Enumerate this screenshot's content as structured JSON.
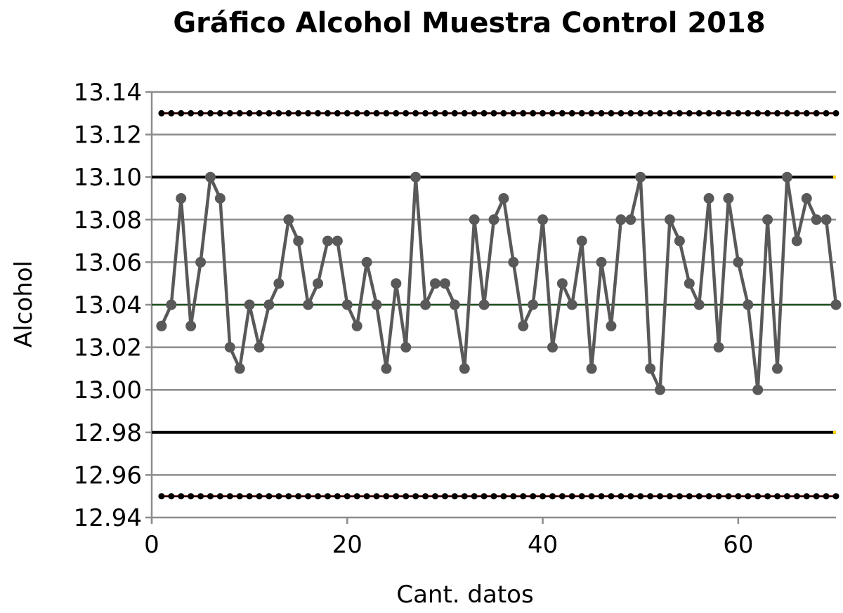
{
  "chart_data": {
    "type": "line",
    "title": "Gráfico Alcohol Muestra Control 2018",
    "xlabel": "Cant. datos",
    "ylabel": "Alcohol",
    "xlim": [
      0,
      70
    ],
    "ylim": [
      12.94,
      13.14
    ],
    "x_ticks": [
      0,
      20,
      40,
      60
    ],
    "x_tick_labels": [
      "0",
      "20",
      "40",
      "60"
    ],
    "y_ticks": [
      12.94,
      12.96,
      12.98,
      13.0,
      13.02,
      13.04,
      13.06,
      13.08,
      13.1,
      13.12,
      13.14
    ],
    "y_tick_labels": [
      "12.94",
      "12.96",
      "12.98",
      "13.00",
      "13.02",
      "13.04",
      "13.06",
      "13.08",
      "13.10",
      "13.12",
      "13.14"
    ],
    "grid": "horizontal",
    "series": [
      {
        "role": "data",
        "color": "#595959",
        "x": [
          1,
          2,
          3,
          4,
          5,
          6,
          7,
          8,
          9,
          10,
          11,
          12,
          13,
          14,
          15,
          16,
          17,
          18,
          19,
          20,
          21,
          22,
          23,
          24,
          25,
          26,
          27,
          28,
          29,
          30,
          31,
          32,
          33,
          34,
          35,
          36,
          37,
          38,
          39,
          40,
          41,
          42,
          43,
          44,
          45,
          46,
          47,
          48,
          49,
          50,
          51,
          52,
          53,
          54,
          55,
          56,
          57,
          58,
          59,
          60,
          61,
          62,
          63,
          64,
          65,
          66,
          67,
          68,
          69,
          70
        ],
        "values": [
          13.03,
          13.04,
          13.09,
          13.03,
          13.06,
          13.1,
          13.09,
          13.02,
          13.01,
          13.04,
          13.02,
          13.04,
          13.05,
          13.08,
          13.07,
          13.04,
          13.05,
          13.07,
          13.07,
          13.04,
          13.03,
          13.06,
          13.04,
          13.01,
          13.05,
          13.02,
          13.1,
          13.04,
          13.05,
          13.05,
          13.04,
          13.01,
          13.08,
          13.04,
          13.08,
          13.09,
          13.06,
          13.03,
          13.04,
          13.08,
          13.02,
          13.05,
          13.04,
          13.07,
          13.01,
          13.06,
          13.03,
          13.08,
          13.08,
          13.1,
          13.01,
          13.0,
          13.08,
          13.07,
          13.05,
          13.04,
          13.09,
          13.02,
          13.09,
          13.06,
          13.04,
          13.0,
          13.08,
          13.01,
          13.1,
          13.07,
          13.09,
          13.08,
          13.08,
          13.04
        ]
      },
      {
        "role": "upper-limit-dotted",
        "color": "#000000",
        "accent": "#c00000",
        "value": 13.13,
        "x_start": 1,
        "x_end": 70
      },
      {
        "role": "lower-limit-dotted",
        "color": "#000000",
        "accent": "#c00000",
        "value": 12.95,
        "x_start": 1,
        "x_end": 70
      },
      {
        "role": "upper-limit",
        "color": "#000000",
        "accent": "#ffd700",
        "value": 13.1,
        "x_start": 0,
        "x_end": 70
      },
      {
        "role": "lower-limit",
        "color": "#000000",
        "accent": "#ffd700",
        "value": 12.98,
        "x_start": 0,
        "x_end": 70
      },
      {
        "role": "center-line",
        "color": "#1f4e1f",
        "value": 13.04,
        "x_start": 0,
        "x_end": 70
      }
    ]
  }
}
